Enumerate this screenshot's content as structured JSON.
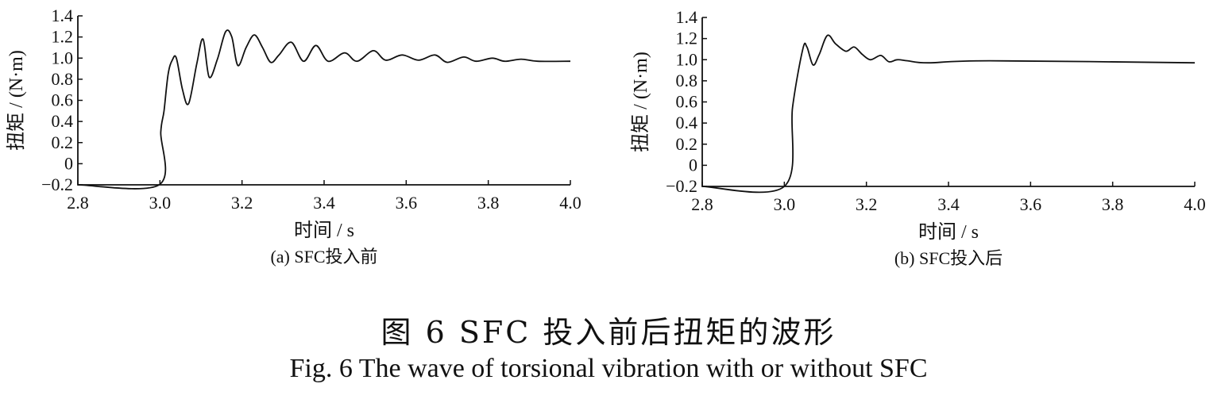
{
  "figure": {
    "caption_cn": "图 6   SFC 投入前后扭矩的波形",
    "caption_en": "Fig. 6   The wave of torsional vibration with or without SFC"
  },
  "chart_data": [
    {
      "type": "line",
      "subtitle": "(a) SFC投入前",
      "xlabel": "时间 / s",
      "ylabel": "扭矩 / (N·m)",
      "xlim": [
        2.8,
        4.0
      ],
      "ylim": [
        -0.2,
        1.4
      ],
      "xticks": [
        "2.8",
        "3.0",
        "3.2",
        "3.4",
        "3.6",
        "3.8",
        "4.0"
      ],
      "yticks": [
        "1.4",
        "1.2",
        "1.0",
        "0.8",
        "0.6",
        "0.4",
        "0.2",
        "0",
        "−0.2"
      ],
      "grid": false,
      "series": [
        {
          "x": [
            2.8,
            2.998,
            3.002,
            3.01,
            3.02,
            3.03,
            3.04,
            3.055,
            3.07,
            3.09,
            3.105,
            3.12,
            3.14,
            3.16,
            3.175,
            3.19,
            3.21,
            3.23,
            3.25,
            3.27,
            3.29,
            3.32,
            3.35,
            3.38,
            3.41,
            3.45,
            3.48,
            3.52,
            3.55,
            3.59,
            3.63,
            3.67,
            3.7,
            3.74,
            3.77,
            3.81,
            3.84,
            3.88,
            3.92,
            4.0
          ],
          "y": [
            -0.2,
            -0.2,
            0.3,
            0.5,
            0.85,
            0.98,
            1.0,
            0.7,
            0.57,
            0.95,
            1.18,
            0.82,
            0.99,
            1.25,
            1.2,
            0.93,
            1.1,
            1.22,
            1.1,
            0.96,
            1.03,
            1.15,
            0.97,
            1.12,
            0.97,
            1.05,
            0.97,
            1.07,
            0.98,
            1.03,
            0.98,
            1.03,
            0.96,
            1.01,
            0.97,
            1.0,
            0.97,
            0.99,
            0.97,
            0.97
          ]
        }
      ]
    },
    {
      "type": "line",
      "subtitle": "(b) SFC投入后",
      "xlabel": "时间 / s",
      "ylabel": "扭矩 / (N·m)",
      "xlim": [
        2.8,
        4.0
      ],
      "ylim": [
        -0.2,
        1.4
      ],
      "xticks": [
        "2.8",
        "3.0",
        "3.2",
        "3.4",
        "3.6",
        "3.8",
        "4.0"
      ],
      "yticks": [
        "1.4",
        "1.2",
        "1.0",
        "0.8",
        "0.6",
        "0.4",
        "0.2",
        "0",
        "−0.2"
      ],
      "grid": false,
      "series": [
        {
          "x": [
            2.8,
            3.0,
            3.02,
            3.045,
            3.055,
            3.07,
            3.085,
            3.105,
            3.125,
            3.15,
            3.17,
            3.19,
            3.21,
            3.235,
            3.255,
            3.275,
            3.3,
            3.35,
            3.5,
            4.0
          ],
          "y": [
            -0.2,
            -0.2,
            0.55,
            1.1,
            1.12,
            0.95,
            1.05,
            1.23,
            1.15,
            1.08,
            1.12,
            1.05,
            1.0,
            1.04,
            0.98,
            1.0,
            0.99,
            0.97,
            0.99,
            0.97
          ]
        }
      ]
    }
  ]
}
